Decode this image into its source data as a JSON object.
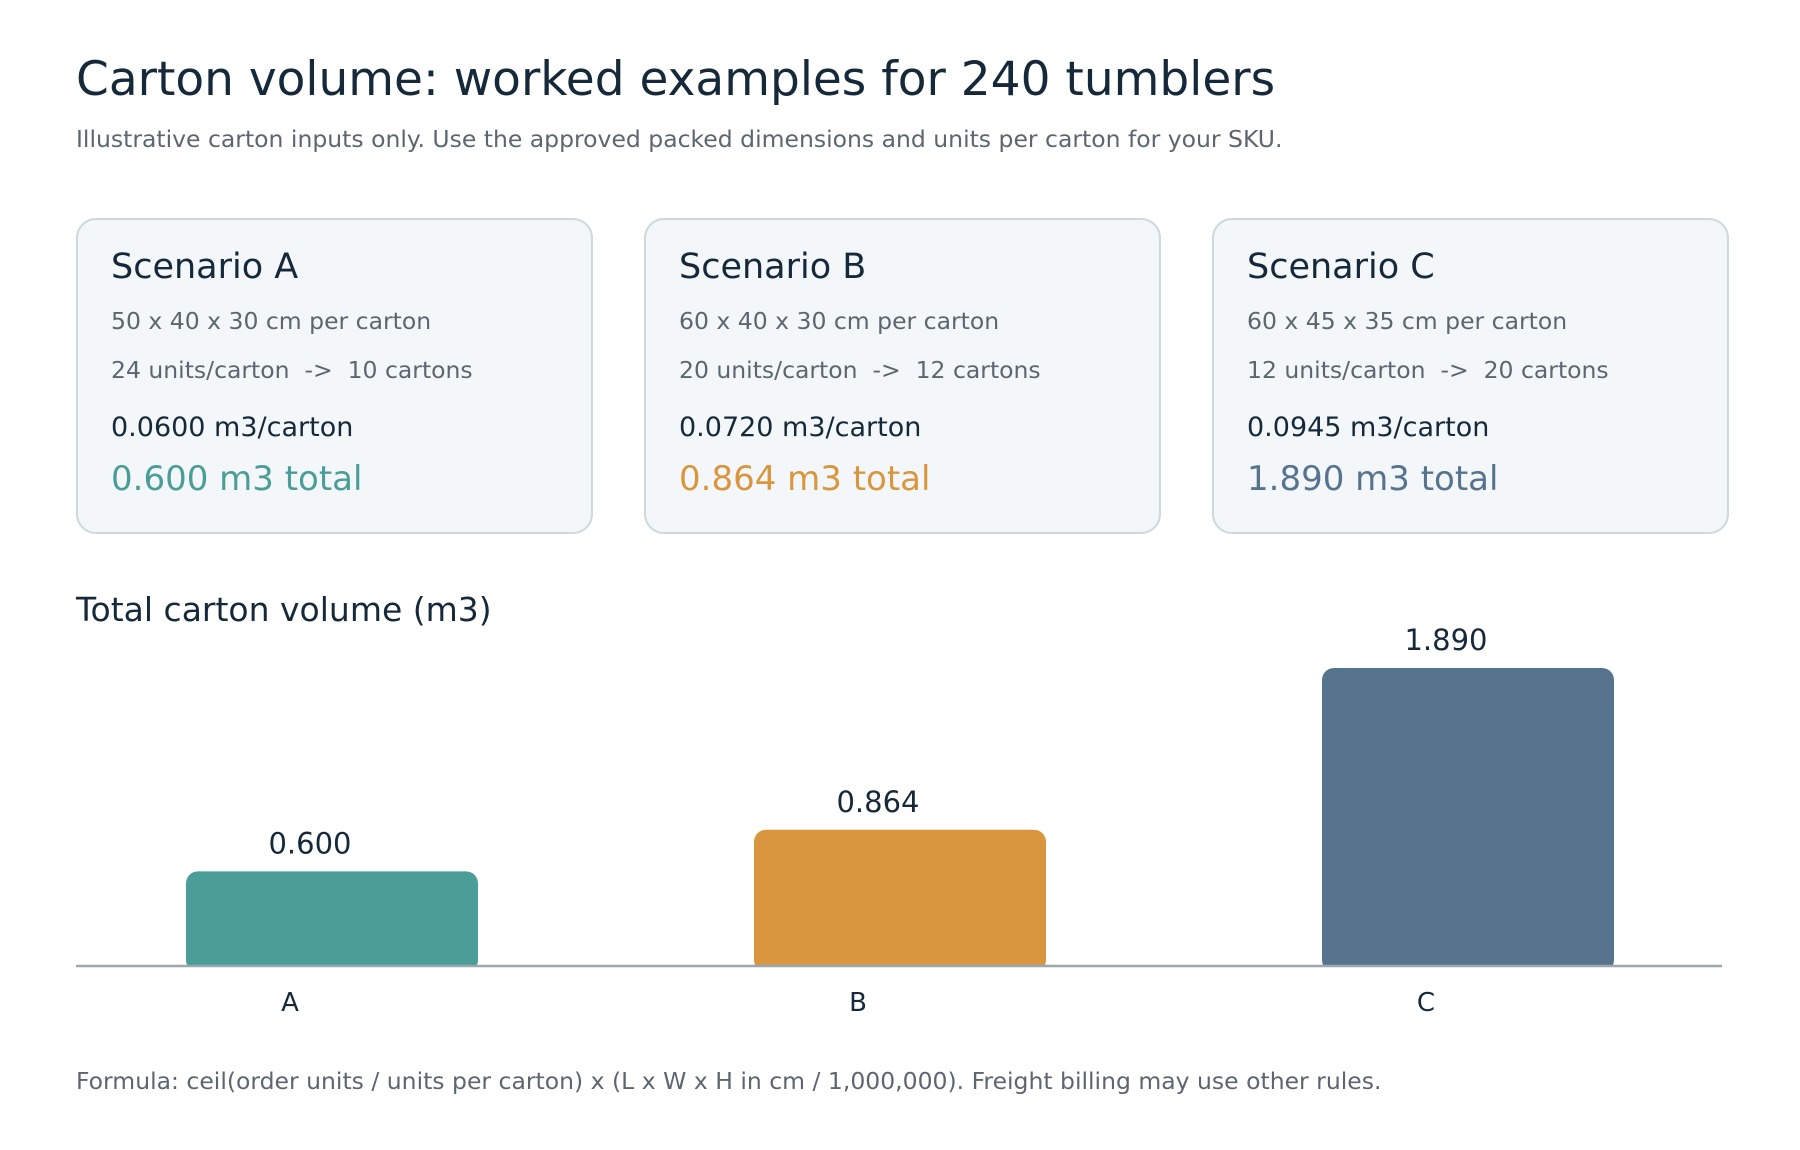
{
  "header": {
    "title": "Carton volume: worked examples for 240 tumblers",
    "subtitle": "Illustrative carton inputs only. Use the approved packed dimensions and units per carton for your SKU."
  },
  "cards": [
    {
      "title": "Scenario A",
      "dims": "50 x 40 x 30 cm per carton",
      "units": "24 units/carton  ->  10 cartons",
      "per_carton": "0.0600 m3/carton",
      "total": "0.600 m3 total",
      "color": "#4b9d97"
    },
    {
      "title": "Scenario B",
      "dims": "60 x 40 x 30 cm per carton",
      "units": "20 units/carton  ->  12 cartons",
      "per_carton": "0.0720 m3/carton",
      "total": "0.864 m3 total",
      "color": "#d9963e"
    },
    {
      "title": "Scenario C",
      "dims": "60 x 45 x 35 cm per carton",
      "units": "12 units/carton  ->  20 cartons",
      "per_carton": "0.0945 m3/carton",
      "total": "1.890 m3 total",
      "color": "#57748f"
    }
  ],
  "chart_data": {
    "type": "bar",
    "title": "Total carton volume (m3)",
    "categories": [
      "A",
      "B",
      "C"
    ],
    "values": [
      0.6,
      0.864,
      1.89
    ],
    "value_labels": [
      "0.600",
      "0.864",
      "1.890"
    ],
    "colors": [
      "#4b9d97",
      "#d9963e",
      "#57748f"
    ],
    "axis_color": "#9aa7b1",
    "ylim": [
      0,
      1.89
    ],
    "grid": false,
    "legend": "none"
  },
  "footnote": "Formula: ceil(order units / units per carton) x (L x W x H in cm / 1,000,000). Freight billing may use other rules."
}
